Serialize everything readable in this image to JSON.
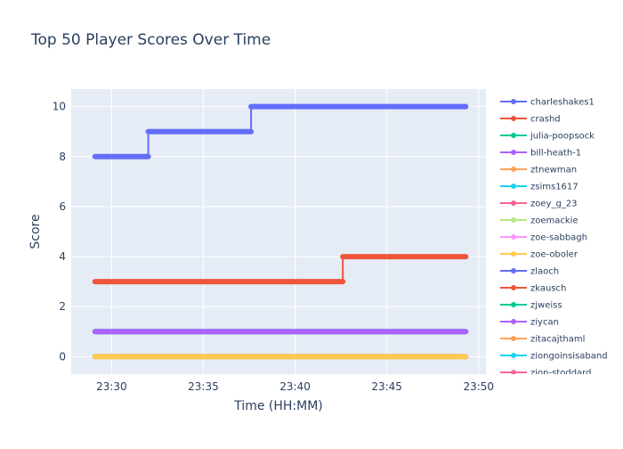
{
  "chart_data": {
    "type": "line",
    "title": "Top 50 Player Scores Over Time",
    "xlabel": "Time (HH:MM)",
    "ylabel": "Score",
    "x_tick_labels": [
      "23:30",
      "23:35",
      "23:40",
      "23:45",
      "23:50"
    ],
    "x_ticks_minutes": [
      0,
      5,
      10,
      15,
      20
    ],
    "xlim_minutes": [
      -2.2,
      20.4
    ],
    "y_ticks": [
      0,
      2,
      4,
      6,
      8,
      10
    ],
    "ylim": [
      -0.7,
      10.7
    ],
    "grid": true,
    "legend_position": "right",
    "series": [
      {
        "name": "charleshakes1",
        "color": "#636efa",
        "points": [
          [
            -0.9,
            8
          ],
          [
            2.0,
            8
          ],
          [
            2.0,
            9
          ],
          [
            7.6,
            9
          ],
          [
            7.6,
            10
          ],
          [
            19.3,
            10
          ]
        ]
      },
      {
        "name": "crashd",
        "color": "#ef553b",
        "points": [
          [
            -0.9,
            3
          ],
          [
            12.6,
            3
          ],
          [
            12.6,
            4
          ],
          [
            19.3,
            4
          ]
        ]
      },
      {
        "name": "julia-poopsock",
        "color": "#00cc96",
        "points": [
          [
            -0.9,
            1
          ],
          [
            19.3,
            1
          ]
        ]
      },
      {
        "name": "bill-heath-1",
        "color": "#ab63fa",
        "points": [
          [
            -0.9,
            1
          ],
          [
            19.3,
            1
          ]
        ]
      },
      {
        "name": "ztnewman",
        "color": "#ffa15a",
        "points": [
          [
            -0.9,
            0
          ],
          [
            19.3,
            0
          ]
        ]
      },
      {
        "name": "zsims1617",
        "color": "#19d3f3",
        "points": [
          [
            -0.9,
            0
          ],
          [
            19.3,
            0
          ]
        ]
      },
      {
        "name": "zoey_g_23",
        "color": "#ff6692",
        "points": [
          [
            -0.9,
            0
          ],
          [
            19.3,
            0
          ]
        ]
      },
      {
        "name": "zoemackie",
        "color": "#b6e880",
        "points": [
          [
            -0.9,
            0
          ],
          [
            19.3,
            0
          ]
        ]
      },
      {
        "name": "zoe-sabbagh",
        "color": "#ff97ff",
        "points": [
          [
            -0.9,
            0
          ],
          [
            19.3,
            0
          ]
        ]
      },
      {
        "name": "zoe-oboler",
        "color": "#fecb52",
        "points": [
          [
            -0.9,
            0
          ],
          [
            19.3,
            0
          ]
        ]
      },
      {
        "name": "zlaoch",
        "color": "#636efa",
        "points": []
      },
      {
        "name": "zkausch",
        "color": "#ef553b",
        "points": []
      },
      {
        "name": "zjweiss",
        "color": "#00cc96",
        "points": []
      },
      {
        "name": "ziycan",
        "color": "#ab63fa",
        "points": []
      },
      {
        "name": "zitacajthaml",
        "color": "#ffa15a",
        "points": []
      },
      {
        "name": "ziongoinsisaband",
        "color": "#19d3f3",
        "points": []
      },
      {
        "name": "zion-stoddard",
        "color": "#ff6692",
        "points": []
      }
    ]
  }
}
